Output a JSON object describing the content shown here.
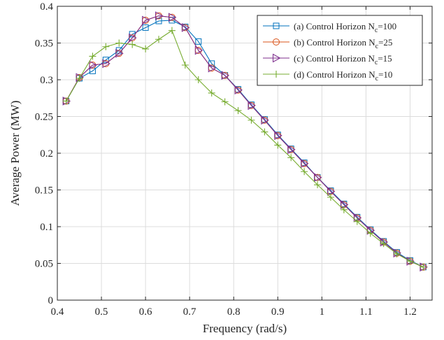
{
  "chart_data": {
    "type": "line",
    "title": "",
    "xlabel": "Frequency (rad/s)",
    "ylabel": "Average Power (MW)",
    "xlim": [
      0.4,
      1.25
    ],
    "ylim": [
      0,
      0.4
    ],
    "xticks": [
      0.4,
      0.5,
      0.6,
      0.7,
      0.8,
      0.9,
      1.0,
      1.1,
      1.2
    ],
    "xtick_labels": [
      "0.4",
      "0.5",
      "0.6",
      "0.7",
      "0.8",
      "0.9",
      "1",
      "1.1",
      "1.2"
    ],
    "yticks": [
      0,
      0.05,
      0.1,
      0.15,
      0.2,
      0.25,
      0.3,
      0.35,
      0.4
    ],
    "ytick_labels": [
      "0",
      "0.05",
      "0.1",
      "0.15",
      "0.2",
      "0.25",
      "0.3",
      "0.35",
      "0.4"
    ],
    "grid": true,
    "legend_position": "top-right",
    "x": [
      0.42,
      0.45,
      0.48,
      0.51,
      0.54,
      0.57,
      0.6,
      0.63,
      0.66,
      0.69,
      0.72,
      0.75,
      0.78,
      0.81,
      0.84,
      0.87,
      0.9,
      0.93,
      0.96,
      0.99,
      1.02,
      1.05,
      1.08,
      1.11,
      1.14,
      1.17,
      1.2,
      1.23
    ],
    "series": [
      {
        "label_main": "(a) Control Horizon N",
        "label_sub": "c",
        "label_tail": "=100",
        "color": "#0072BD",
        "marker": "square",
        "values": [
          0.271,
          0.302,
          0.312,
          0.327,
          0.34,
          0.362,
          0.371,
          0.38,
          0.381,
          0.372,
          0.352,
          0.322,
          0.306,
          0.287,
          0.266,
          0.246,
          0.225,
          0.206,
          0.187,
          0.167,
          0.149,
          0.131,
          0.113,
          0.096,
          0.08,
          0.065,
          0.054,
          0.045
        ]
      },
      {
        "label_main": "(b) Control Horizon N",
        "label_sub": "c",
        "label_tail": "=25",
        "color": "#D95319",
        "marker": "circle",
        "values": [
          0.271,
          0.303,
          0.32,
          0.322,
          0.336,
          0.357,
          0.381,
          0.387,
          0.385,
          0.371,
          0.34,
          0.316,
          0.306,
          0.286,
          0.265,
          0.245,
          0.224,
          0.205,
          0.186,
          0.167,
          0.148,
          0.13,
          0.112,
          0.095,
          0.079,
          0.064,
          0.053,
          0.045
        ]
      },
      {
        "label_main": "(c) Control Horizon N",
        "label_sub": "c",
        "label_tail": "=15",
        "color": "#7E2F8E",
        "marker": "triangle-right",
        "values": [
          0.271,
          0.303,
          0.32,
          0.322,
          0.336,
          0.357,
          0.381,
          0.387,
          0.385,
          0.371,
          0.34,
          0.316,
          0.306,
          0.286,
          0.265,
          0.245,
          0.224,
          0.205,
          0.186,
          0.167,
          0.148,
          0.13,
          0.112,
          0.095,
          0.079,
          0.064,
          0.053,
          0.045
        ]
      },
      {
        "label_main": "(d) Control Horizon N",
        "label_sub": "c",
        "label_tail": "=10",
        "color": "#77AC30",
        "marker": "plus",
        "values": [
          0.271,
          0.302,
          0.332,
          0.345,
          0.35,
          0.348,
          0.342,
          0.355,
          0.367,
          0.32,
          0.3,
          0.282,
          0.27,
          0.258,
          0.245,
          0.229,
          0.211,
          0.194,
          0.175,
          0.157,
          0.14,
          0.123,
          0.107,
          0.091,
          0.077,
          0.063,
          0.053,
          0.045
        ]
      }
    ]
  }
}
